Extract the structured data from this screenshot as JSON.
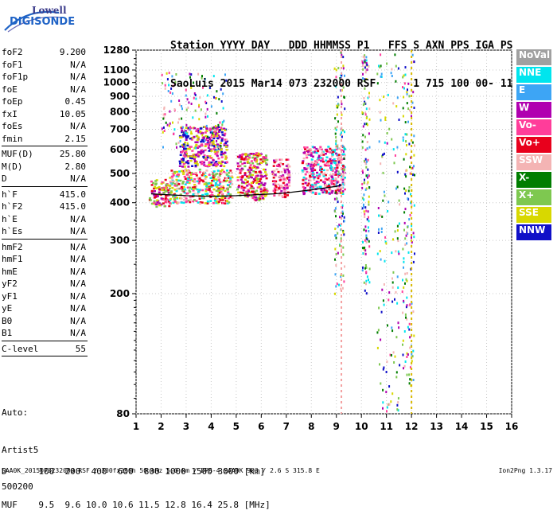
{
  "logo": {
    "line1": "Lowell",
    "line2": "DIGISONDE"
  },
  "header": {
    "line1": "Station YYYY DAY   DDD HHMMSS P1   FFS S AXN PPS IGA PS",
    "line2": "SaoLuis 2015 Mar14 073 232000 RSF      1 715 100 00- 11"
  },
  "params": [
    {
      "label": "foF2",
      "value": "9.200"
    },
    {
      "label": "foF1",
      "value": "N/A"
    },
    {
      "label": "foF1p",
      "value": "N/A"
    },
    {
      "label": "foE",
      "value": "N/A"
    },
    {
      "label": "foEp",
      "value": "0.45"
    },
    {
      "label": "fxI",
      "value": "10.05"
    },
    {
      "label": "foEs",
      "value": "N/A"
    },
    {
      "label": "fmin",
      "value": "2.15"
    },
    {
      "sep": true
    },
    {
      "label": "MUF(D)",
      "value": "25.80"
    },
    {
      "label": "M(D)",
      "value": "2.80"
    },
    {
      "label": "D",
      "value": "N/A"
    },
    {
      "sep": true
    },
    {
      "label": "h`F",
      "value": "415.0"
    },
    {
      "label": "h`F2",
      "value": "415.0"
    },
    {
      "label": "h`E",
      "value": "N/A"
    },
    {
      "label": "h`Es",
      "value": "N/A"
    },
    {
      "sep": true
    },
    {
      "label": "hmF2",
      "value": "N/A"
    },
    {
      "label": "hmF1",
      "value": "N/A"
    },
    {
      "label": "hmE",
      "value": "N/A"
    },
    {
      "label": "yF2",
      "value": "N/A"
    },
    {
      "label": "yF1",
      "value": "N/A"
    },
    {
      "label": "yE",
      "value": "N/A"
    },
    {
      "label": "B0",
      "value": "N/A"
    },
    {
      "label": "B1",
      "value": "N/A"
    },
    {
      "sep": true
    },
    {
      "label": "C-level",
      "value": "55"
    },
    {
      "sep": true
    }
  ],
  "auto": {
    "line1": "Auto:",
    "line2": "Artist5",
    "line3": "500200"
  },
  "footer": {
    "d_row": "D      100  200  400  600  800 1000 1500 3000 [km]",
    "muf_row": "MUF    9.5  9.6 10.0 10.6 11.5 12.8 16.4 25.8 [MHz]",
    "meta": "SAA0K_2015073232000.RSF / 300fx256h 50 kHz 5.0 km / DPS-4 SAA0K 903 / 2.6 S 315.8 E",
    "version": "Ion2Png 1.3.17"
  },
  "legend": [
    {
      "label": "NoVal",
      "color": "#a0a0a0"
    },
    {
      "label": "NNE",
      "color": "#00e5ee"
    },
    {
      "label": "E",
      "color": "#3da5f5"
    },
    {
      "label": "W",
      "color": "#b000b0"
    },
    {
      "label": "Vo-",
      "color": "#ff3d9a"
    },
    {
      "label": "Vo+",
      "color": "#e8001c"
    },
    {
      "label": "SSW",
      "color": "#f4b4b4"
    },
    {
      "label": "X-",
      "color": "#007d00"
    },
    {
      "label": "X+",
      "color": "#7ec850"
    },
    {
      "label": "SSE",
      "color": "#d8d800"
    },
    {
      "label": "NNW",
      "color": "#1010c8"
    }
  ],
  "chart_data": {
    "type": "scatter",
    "xlim": [
      1,
      16
    ],
    "ylim": [
      80,
      1280
    ],
    "y_scale": "log",
    "x_ticks": [
      1,
      2,
      3,
      4,
      5,
      6,
      7,
      8,
      9,
      10,
      11,
      12,
      13,
      14,
      15,
      16
    ],
    "y_ticks": [
      80,
      200,
      300,
      400,
      500,
      600,
      700,
      800,
      900,
      1000,
      1100,
      1280
    ],
    "grid": "dotted",
    "legend_position": "right",
    "trace": {
      "x": [
        1.6,
        2.0,
        2.5,
        3.0,
        3.5,
        4.0,
        4.5,
        5.0,
        5.5,
        6.0,
        6.5,
        7.0,
        7.5,
        8.0,
        8.5,
        9.0,
        9.2
      ],
      "y": [
        428,
        426,
        424,
        422,
        421,
        420,
        421,
        422,
        424,
        426,
        428,
        431,
        436,
        441,
        447,
        453,
        458
      ]
    },
    "echo_regions": [
      {
        "x": [
          1.5,
          2.3
        ],
        "y": [
          390,
          480
        ],
        "colors": [
          "Vo-",
          "SSE",
          "Vo+",
          "X+",
          "W"
        ]
      },
      {
        "x": [
          2.3,
          4.8
        ],
        "y": [
          400,
          520
        ],
        "colors": [
          "Vo-",
          "SSE",
          "X+",
          "Vo+",
          "SSW",
          "NNE"
        ]
      },
      {
        "x": [
          2.7,
          4.6
        ],
        "y": [
          530,
          720
        ],
        "colors": [
          "W",
          "NNW",
          "Vo-",
          "SSE"
        ]
      },
      {
        "x": [
          5.0,
          6.2
        ],
        "y": [
          410,
          590
        ],
        "colors": [
          "W",
          "Vo-",
          "SSE",
          "X+",
          "Vo+"
        ]
      },
      {
        "x": [
          6.4,
          7.1
        ],
        "y": [
          420,
          560
        ],
        "colors": [
          "Vo-",
          "Vo+",
          "W",
          "SSW"
        ]
      },
      {
        "x": [
          7.6,
          9.3
        ],
        "y": [
          430,
          620
        ],
        "colors": [
          "Vo-",
          "Vo+",
          "W",
          "SSW",
          "NNE"
        ]
      }
    ],
    "sparse_columns": [
      {
        "x": [
          2.0,
          4.6
        ],
        "y": [
          600,
          1100
        ]
      },
      {
        "x": [
          8.9,
          9.3
        ],
        "y": [
          200,
          1280
        ]
      },
      {
        "x": [
          10.0,
          10.3
        ],
        "y": [
          200,
          1280
        ]
      },
      {
        "x": [
          10.6,
          11.5
        ],
        "y": [
          80,
          1280
        ]
      },
      {
        "x": [
          11.6,
          12.1
        ],
        "y": [
          100,
          1280
        ]
      }
    ]
  }
}
